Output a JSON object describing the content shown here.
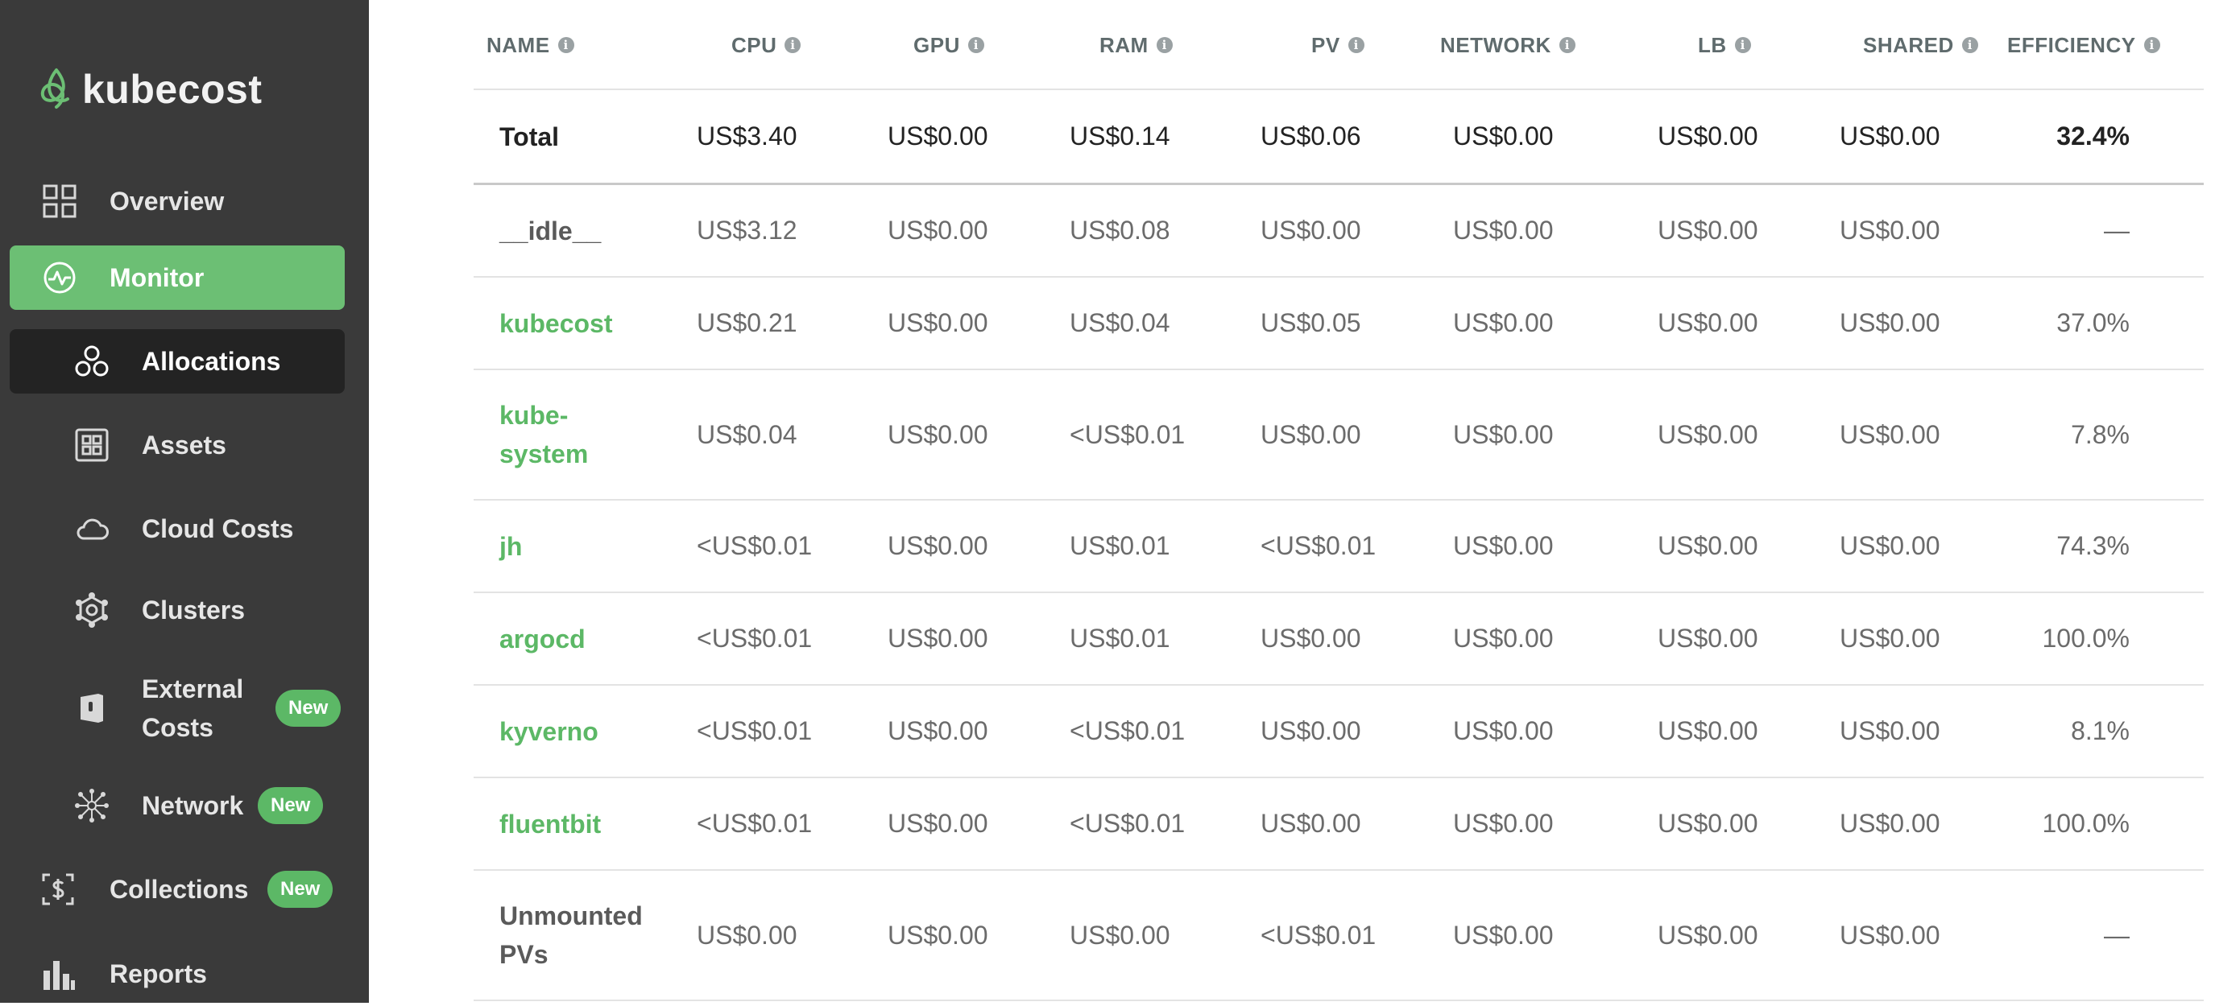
{
  "brand": {
    "name": "kubecost"
  },
  "nav": {
    "overview": "Overview",
    "monitor": "Monitor",
    "allocations": "Allocations",
    "assets": "Assets",
    "cloud_costs": "Cloud Costs",
    "clusters": "Clusters",
    "external_costs": "External Costs",
    "network": "Network",
    "collections": "Collections",
    "reports": "Reports",
    "new_badge": "New"
  },
  "colors": {
    "accent": "#6cbf74",
    "sidebar_bg": "#3a3a3a",
    "link": "#5cb866"
  },
  "table": {
    "headers": [
      "NAME",
      "CPU",
      "GPU",
      "RAM",
      "PV",
      "NETWORK",
      "LB",
      "SHARED",
      "EFFICIENCY"
    ],
    "total": {
      "name": "Total",
      "cpu": "US$3.40",
      "gpu": "US$0.00",
      "ram": "US$0.14",
      "pv": "US$0.06",
      "network": "US$0.00",
      "lb": "US$0.00",
      "shared": "US$0.00",
      "efficiency": "32.4%"
    },
    "rows": [
      {
        "name": "__idle__",
        "cpu": "US$3.12",
        "gpu": "US$0.00",
        "ram": "US$0.08",
        "pv": "US$0.00",
        "network": "US$0.00",
        "lb": "US$0.00",
        "shared": "US$0.00",
        "efficiency": "—"
      },
      {
        "name": "kubecost",
        "cpu": "US$0.21",
        "gpu": "US$0.00",
        "ram": "US$0.04",
        "pv": "US$0.05",
        "network": "US$0.00",
        "lb": "US$0.00",
        "shared": "US$0.00",
        "efficiency": "37.0%"
      },
      {
        "name": "kube-system",
        "cpu": "US$0.04",
        "gpu": "US$0.00",
        "ram": "<US$0.01",
        "pv": "US$0.00",
        "network": "US$0.00",
        "lb": "US$0.00",
        "shared": "US$0.00",
        "efficiency": "7.8%"
      },
      {
        "name": "jh",
        "cpu": "<US$0.01",
        "gpu": "US$0.00",
        "ram": "US$0.01",
        "pv": "<US$0.01",
        "network": "US$0.00",
        "lb": "US$0.00",
        "shared": "US$0.00",
        "efficiency": "74.3%"
      },
      {
        "name": "argocd",
        "cpu": "<US$0.01",
        "gpu": "US$0.00",
        "ram": "US$0.01",
        "pv": "US$0.00",
        "network": "US$0.00",
        "lb": "US$0.00",
        "shared": "US$0.00",
        "efficiency": "100.0%"
      },
      {
        "name": "kyverno",
        "cpu": "<US$0.01",
        "gpu": "US$0.00",
        "ram": "<US$0.01",
        "pv": "US$0.00",
        "network": "US$0.00",
        "lb": "US$0.00",
        "shared": "US$0.00",
        "efficiency": "8.1%"
      },
      {
        "name": "fluentbit",
        "cpu": "<US$0.01",
        "gpu": "US$0.00",
        "ram": "<US$0.01",
        "pv": "US$0.00",
        "network": "US$0.00",
        "lb": "US$0.00",
        "shared": "US$0.00",
        "efficiency": "100.0%"
      },
      {
        "name": "Unmounted PVs",
        "cpu": "US$0.00",
        "gpu": "US$0.00",
        "ram": "US$0.00",
        "pv": "<US$0.01",
        "network": "US$0.00",
        "lb": "US$0.00",
        "shared": "US$0.00",
        "efficiency": "—"
      }
    ]
  }
}
